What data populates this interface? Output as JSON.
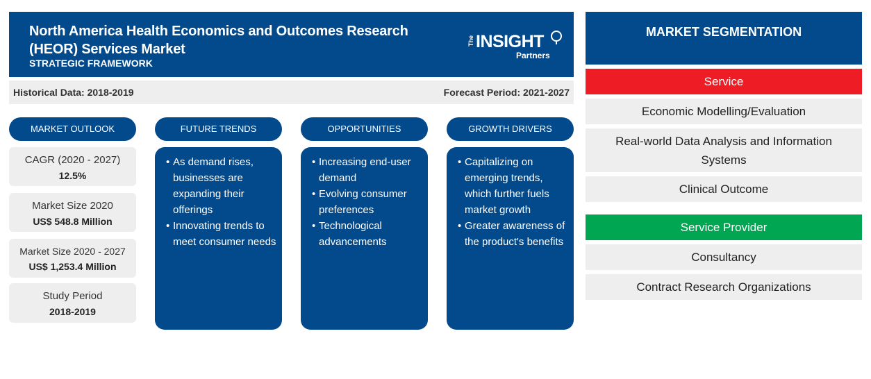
{
  "header": {
    "title": "North America Health Economics and Outcomes Research (HEOR) Services Market",
    "subtitle": "STRATEGIC FRAMEWORK"
  },
  "logo": {
    "the": "The",
    "insight": "INSIGHT",
    "partners": "Partners"
  },
  "periods": {
    "historical": "Historical Data: 2018-2019",
    "forecast": "Forecast Period: 2021-2027"
  },
  "columns": {
    "outlook": "MARKET OUTLOOK",
    "trends": "FUTURE TRENDS",
    "opportunities": "OPPORTUNITIES",
    "drivers": "GROWTH DRIVERS"
  },
  "stats": [
    {
      "label": "CAGR (2020 - 2027)",
      "value": "12.5%"
    },
    {
      "label": "Market Size 2020",
      "value": "US$ 548.8 Million"
    },
    {
      "label": "Market Size 2020 - 2027",
      "value": "US$ 1,253.4 Million"
    },
    {
      "label": "Study Period",
      "value": "2018-2019"
    }
  ],
  "trends": [
    "As demand rises, businesses are expanding their offerings",
    "Innovating trends to meet consumer needs"
  ],
  "opportunities": [
    "Increasing end-user demand",
    "Evolving consumer preferences",
    "Technological advancements"
  ],
  "drivers": [
    "Capitalizing on emerging trends, which further fuels market growth",
    "Greater awareness of the product's benefits"
  ],
  "segmentation": {
    "title": "MARKET SEGMENTATION",
    "groups": [
      {
        "name": "Service",
        "color": "#ee1c25",
        "items": [
          "Economic Modelling/Evaluation",
          "Real-world Data Analysis and Information Systems",
          "Clinical Outcome"
        ]
      },
      {
        "name": "Service Provider",
        "color": "#00a651",
        "items": [
          "Consultancy",
          "Contract Research Organizations"
        ]
      }
    ]
  },
  "colors": {
    "primary": "#034a8d",
    "panel": "#eeeeee"
  }
}
